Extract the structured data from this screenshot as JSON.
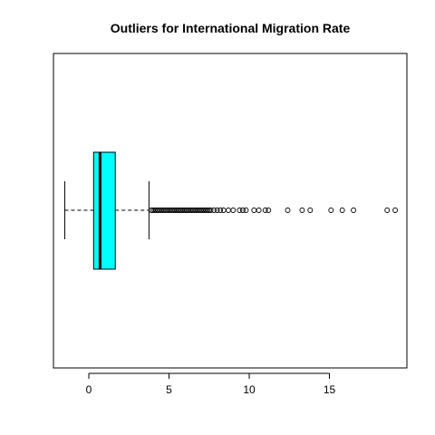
{
  "chart_data": {
    "type": "boxplot",
    "orientation": "horizontal",
    "title": "Outliers for  International  Migration Rate",
    "xlabel": "",
    "ylabel": "",
    "xlim": [
      -2,
      19.3
    ],
    "ticks": [
      0,
      5,
      10,
      15
    ],
    "tick_labels": [
      "0",
      "5",
      "10",
      "15"
    ],
    "box_color": "#00FFFF",
    "stats": {
      "whisker_low": -1.5,
      "q1": 0.3,
      "median": 0.7,
      "q3": 1.65,
      "whisker_high": 3.75
    },
    "outliers": [
      3.9,
      4.0,
      4.1,
      4.2,
      4.3,
      4.4,
      4.5,
      4.6,
      4.7,
      4.8,
      4.9,
      5.0,
      5.1,
      5.2,
      5.3,
      5.4,
      5.5,
      5.6,
      5.7,
      5.8,
      5.9,
      6.0,
      6.1,
      6.2,
      6.3,
      6.4,
      6.5,
      6.6,
      6.7,
      6.8,
      6.9,
      7.0,
      7.1,
      7.2,
      7.3,
      7.4,
      7.5,
      7.6,
      7.8,
      8.0,
      8.2,
      8.4,
      8.7,
      9.0,
      9.4,
      9.6,
      9.8,
      10.3,
      10.6,
      11.0,
      11.2,
      12.4,
      13.3,
      13.8,
      15.1,
      15.8,
      16.5,
      18.6,
      19.1
    ]
  }
}
